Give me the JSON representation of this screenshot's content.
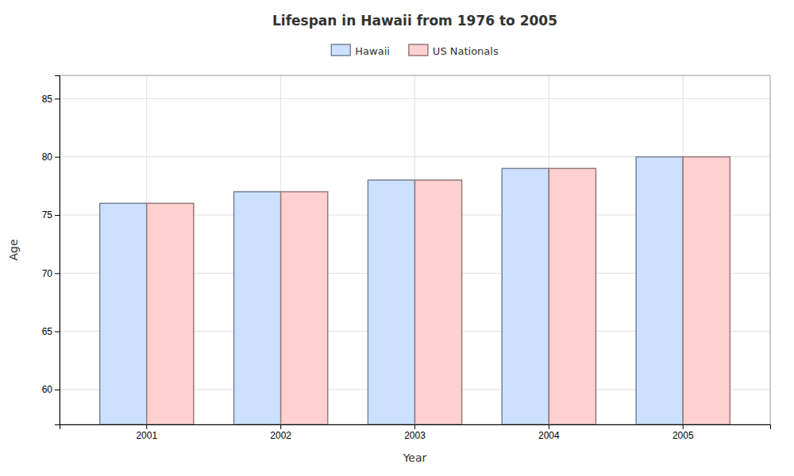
{
  "chart_data": {
    "type": "bar",
    "title": "Lifespan in Hawaii from 1976 to 2005",
    "x_label": "Year",
    "y_label": "Age",
    "categories": [
      "2001",
      "2002",
      "2003",
      "2004",
      "2005"
    ],
    "series": [
      {
        "name": "Hawaii",
        "color": "#cce0ff",
        "values": [
          76,
          77,
          78,
          79,
          80
        ]
      },
      {
        "name": "US Nationals",
        "color": "#ffd0d0",
        "values": [
          76,
          77,
          78,
          79,
          80
        ]
      }
    ],
    "ylim": [
      57,
      87
    ],
    "yticks": [
      60,
      65,
      70,
      75,
      80,
      85
    ],
    "grid": true,
    "legend": "top"
  }
}
